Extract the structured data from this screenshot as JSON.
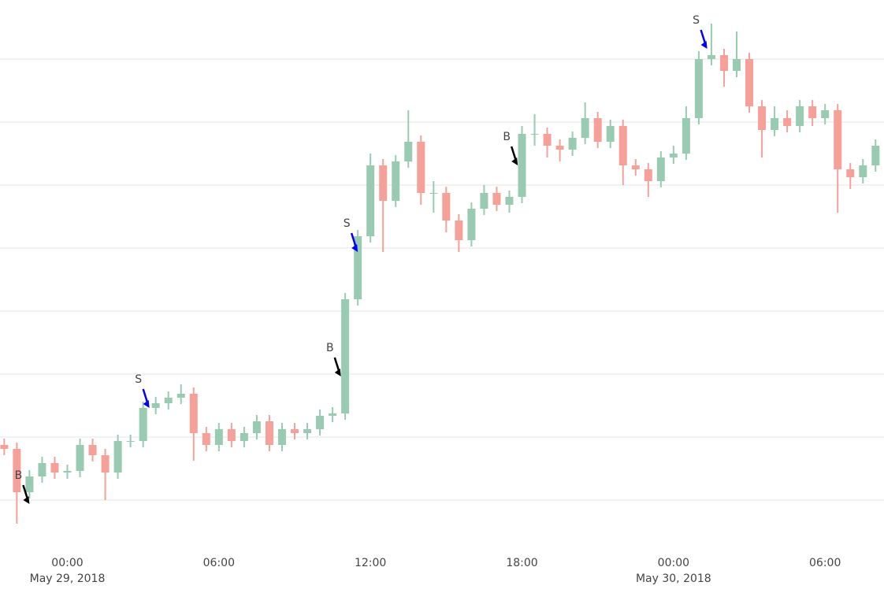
{
  "chart_data": {
    "type": "candlestick",
    "x": [
      "2018-05-28 21:30",
      "2018-05-28 22:00",
      "2018-05-28 22:30",
      "2018-05-28 23:00",
      "2018-05-28 23:30",
      "2018-05-29 00:00",
      "2018-05-29 00:30",
      "2018-05-29 01:00",
      "2018-05-29 01:30",
      "2018-05-29 02:00",
      "2018-05-29 02:30",
      "2018-05-29 03:00",
      "2018-05-29 03:30",
      "2018-05-29 04:00",
      "2018-05-29 04:30",
      "2018-05-29 05:00",
      "2018-05-29 05:30",
      "2018-05-29 06:00",
      "2018-05-29 06:30",
      "2018-05-29 07:00",
      "2018-05-29 07:30",
      "2018-05-29 08:00",
      "2018-05-29 08:30",
      "2018-05-29 09:00",
      "2018-05-29 09:30",
      "2018-05-29 10:00",
      "2018-05-29 10:30",
      "2018-05-29 11:00",
      "2018-05-29 11:30",
      "2018-05-29 12:00",
      "2018-05-29 12:30",
      "2018-05-29 13:00",
      "2018-05-29 13:30",
      "2018-05-29 14:00",
      "2018-05-29 14:30",
      "2018-05-29 15:00",
      "2018-05-29 15:30",
      "2018-05-29 16:00",
      "2018-05-29 16:30",
      "2018-05-29 17:00",
      "2018-05-29 17:30",
      "2018-05-29 18:00",
      "2018-05-29 18:30",
      "2018-05-29 19:00",
      "2018-05-29 19:30",
      "2018-05-29 20:00",
      "2018-05-29 20:30",
      "2018-05-29 21:00",
      "2018-05-29 21:30",
      "2018-05-29 22:00",
      "2018-05-29 22:30",
      "2018-05-29 23:00",
      "2018-05-29 23:30",
      "2018-05-30 00:00",
      "2018-05-30 00:30",
      "2018-05-30 01:00",
      "2018-05-30 01:30",
      "2018-05-30 02:00",
      "2018-05-30 02:30",
      "2018-05-30 03:00",
      "2018-05-30 03:30",
      "2018-05-30 04:00",
      "2018-05-30 04:30",
      "2018-05-30 05:00",
      "2018-05-30 05:30",
      "2018-05-30 06:00",
      "2018-05-30 06:30",
      "2018-05-30 07:00",
      "2018-05-30 07:30",
      "2018-05-30 08:00"
    ],
    "open": [
      235,
      230,
      175,
      195,
      212,
      200,
      202,
      235,
      222,
      200,
      240,
      240,
      282,
      288,
      295,
      300,
      250,
      235,
      255,
      240,
      250,
      265,
      235,
      255,
      250,
      255,
      272,
      275,
      420,
      500,
      590,
      545,
      595,
      620,
      555,
      555,
      520,
      495,
      535,
      555,
      540,
      550,
      630,
      630,
      615,
      610,
      625,
      650,
      620,
      640,
      590,
      585,
      570,
      600,
      605,
      650,
      725,
      730,
      710,
      725,
      665,
      635,
      650,
      640,
      665,
      650,
      660,
      585,
      575,
      590
    ],
    "high": [
      243,
      238,
      203,
      220,
      220,
      210,
      243,
      243,
      230,
      248,
      248,
      290,
      296,
      303,
      312,
      308,
      258,
      263,
      263,
      258,
      273,
      273,
      263,
      263,
      263,
      280,
      283,
      428,
      508,
      605,
      598,
      603,
      660,
      628,
      570,
      563,
      528,
      543,
      565,
      563,
      558,
      640,
      655,
      638,
      623,
      633,
      670,
      658,
      648,
      648,
      598,
      593,
      608,
      615,
      665,
      735,
      770,
      738,
      760,
      733,
      673,
      665,
      660,
      673,
      673,
      668,
      668,
      593,
      598,
      623
    ],
    "low": [
      222,
      135,
      167,
      187,
      192,
      192,
      194,
      214,
      165,
      192,
      232,
      232,
      274,
      280,
      287,
      215,
      227,
      227,
      232,
      232,
      242,
      227,
      227,
      242,
      242,
      247,
      264,
      267,
      412,
      492,
      480,
      537,
      587,
      540,
      530,
      505,
      480,
      487,
      527,
      532,
      530,
      542,
      615,
      600,
      595,
      602,
      617,
      612,
      612,
      565,
      577,
      550,
      562,
      592,
      597,
      642,
      717,
      690,
      702,
      657,
      600,
      627,
      632,
      632,
      640,
      642,
      530,
      560,
      567,
      582
    ],
    "close": [
      230,
      175,
      195,
      212,
      200,
      202,
      235,
      222,
      200,
      240,
      240,
      282,
      288,
      295,
      300,
      250,
      235,
      255,
      240,
      250,
      265,
      235,
      255,
      250,
      255,
      272,
      275,
      420,
      500,
      590,
      545,
      595,
      620,
      555,
      555,
      520,
      495,
      535,
      555,
      540,
      550,
      630,
      630,
      615,
      610,
      625,
      650,
      620,
      640,
      590,
      585,
      570,
      600,
      605,
      650,
      725,
      730,
      710,
      725,
      665,
      635,
      650,
      640,
      665,
      650,
      660,
      585,
      575,
      590,
      615
    ],
    "increasing_color": "#99cbb2",
    "decreasing_color": "#f5a099",
    "xlim": [
      "2018-05-28 21:20",
      "2018-05-30 08:20"
    ],
    "xticks": [
      {
        "value": "2018-05-29 00:00",
        "label": "00:00",
        "date": "May 29, 2018"
      },
      {
        "value": "2018-05-29 06:00",
        "label": "06:00"
      },
      {
        "value": "2018-05-29 12:00",
        "label": "12:00"
      },
      {
        "value": "2018-05-29 18:00",
        "label": "18:00"
      },
      {
        "value": "2018-05-30 00:00",
        "label": "00:00",
        "date": "May 30, 2018"
      },
      {
        "value": "2018-05-30 06:00",
        "label": "06:00"
      }
    ],
    "ylim": [
      95,
      800
    ],
    "yticks": [
      165,
      245,
      325,
      405,
      485,
      565,
      645,
      725
    ],
    "grid": true,
    "annotations": [
      {
        "text": "B",
        "x": "2018-05-28 22:30",
        "y": 160,
        "color": "#000000"
      },
      {
        "text": "S",
        "x": "2018-05-29 03:15",
        "y": 282,
        "color": "#0000ff"
      },
      {
        "text": "B",
        "x": "2018-05-29 10:50",
        "y": 322,
        "color": "#000000"
      },
      {
        "text": "S",
        "x": "2018-05-29 11:30",
        "y": 480,
        "color": "#0000ff"
      },
      {
        "text": "B",
        "x": "2018-05-29 17:50",
        "y": 590,
        "color": "#000000"
      },
      {
        "text": "S",
        "x": "2018-05-30 01:20",
        "y": 738,
        "color": "#0000ff"
      }
    ]
  }
}
